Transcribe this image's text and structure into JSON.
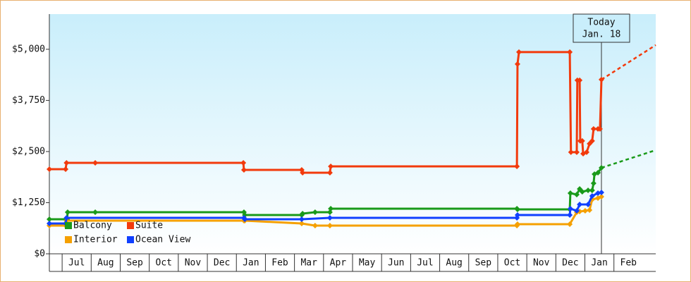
{
  "chart_data": {
    "type": "line",
    "xlim": [
      -0.44,
      20.44
    ],
    "ylim": [
      0,
      5860
    ],
    "xticks": [
      {
        "value": 0.5,
        "label": "Jul"
      },
      {
        "value": 1.5,
        "label": "Aug"
      },
      {
        "value": 2.5,
        "label": "Sep"
      },
      {
        "value": 3.5,
        "label": "Oct"
      },
      {
        "value": 4.5,
        "label": "Nov"
      },
      {
        "value": 5.5,
        "label": "Dec"
      },
      {
        "value": 6.5,
        "label": "Jan"
      },
      {
        "value": 7.5,
        "label": "Feb"
      },
      {
        "value": 8.5,
        "label": "Mar"
      },
      {
        "value": 9.5,
        "label": "Apr"
      },
      {
        "value": 10.5,
        "label": "May"
      },
      {
        "value": 11.5,
        "label": "Jun"
      },
      {
        "value": 12.5,
        "label": "Jul"
      },
      {
        "value": 13.5,
        "label": "Aug"
      },
      {
        "value": 14.5,
        "label": "Sep"
      },
      {
        "value": 15.5,
        "label": "Oct"
      },
      {
        "value": 16.5,
        "label": "Nov"
      },
      {
        "value": 17.5,
        "label": "Dec"
      },
      {
        "value": 18.5,
        "label": "Jan"
      },
      {
        "value": 19.5,
        "label": "Feb"
      }
    ],
    "yticks": [
      {
        "value": 0,
        "label": "$0"
      },
      {
        "value": 1250,
        "label": "$1,250"
      },
      {
        "value": 2500,
        "label": "$2,500"
      },
      {
        "value": 3750,
        "label": "$3,750"
      },
      {
        "value": 5000,
        "label": "$5,000"
      }
    ],
    "legend": "lower left",
    "annotation": {
      "lines": [
        "Today",
        "Jan. 18"
      ],
      "x": 18.57
    },
    "series": [
      {
        "name": "Balcony",
        "color": "#1a9a1a",
        "x": [
          -0.44,
          0.17,
          0.19,
          1.14,
          6.26,
          6.29,
          8.25,
          8.28,
          8.71,
          9.22,
          9.25,
          15.66,
          15.68,
          17.48,
          17.5,
          17.72,
          17.82,
          17.91,
          18.11,
          18.25,
          18.3,
          18.33,
          18.45,
          18.57
        ],
        "values": [
          845,
          845,
          1017,
          1017,
          1017,
          948,
          948,
          983,
          1017,
          1017,
          1103,
          1103,
          1086,
          1086,
          1483,
          1448,
          1586,
          1517,
          1552,
          1552,
          1724,
          1948,
          1983,
          2103
        ],
        "projection": {
          "x": [
            18.57,
            20.44
          ],
          "values": [
            2103,
            2534
          ]
        }
      },
      {
        "name": "Suite",
        "color": "#f23a0c",
        "x": [
          -0.44,
          0.12,
          0.15,
          1.14,
          6.24,
          6.26,
          8.25,
          8.28,
          9.22,
          9.25,
          15.66,
          15.68,
          15.73,
          17.48,
          17.52,
          17.72,
          17.74,
          17.82,
          17.84,
          17.91,
          17.94,
          18.06,
          18.16,
          18.25,
          18.3,
          18.45,
          18.52,
          18.57
        ],
        "values": [
          2069,
          2069,
          2224,
          2224,
          2224,
          2052,
          2052,
          1983,
          1983,
          2138,
          2138,
          4638,
          4931,
          4931,
          2483,
          2483,
          4241,
          4241,
          2759,
          2759,
          2448,
          2483,
          2690,
          2759,
          3052,
          3052,
          3052,
          4259
        ],
        "projection": {
          "x": [
            18.57,
            20.44
          ],
          "values": [
            4259,
            5103
          ]
        }
      },
      {
        "name": "Interior",
        "color": "#f5a000",
        "x": [
          -0.44,
          0.12,
          0.15,
          6.26,
          6.29,
          8.25,
          8.71,
          9.22,
          15.66,
          15.68,
          17.48,
          17.72,
          17.82,
          18.01,
          18.16,
          18.25,
          18.45,
          18.57
        ],
        "values": [
          690,
          690,
          810,
          810,
          810,
          741,
          690,
          690,
          690,
          724,
          724,
          1017,
          1034,
          1052,
          1069,
          1328,
          1362,
          1397
        ]
      },
      {
        "name": "Ocean View",
        "color": "#1040ff",
        "x": [
          -0.44,
          0.12,
          0.15,
          6.26,
          6.29,
          8.25,
          9.22,
          15.66,
          15.68,
          17.48,
          17.5,
          17.72,
          17.82,
          18.11,
          18.25,
          18.45,
          18.57
        ],
        "values": [
          741,
          741,
          879,
          879,
          845,
          845,
          879,
          879,
          948,
          948,
          1103,
          1052,
          1207,
          1207,
          1414,
          1483,
          1500
        ]
      }
    ]
  }
}
